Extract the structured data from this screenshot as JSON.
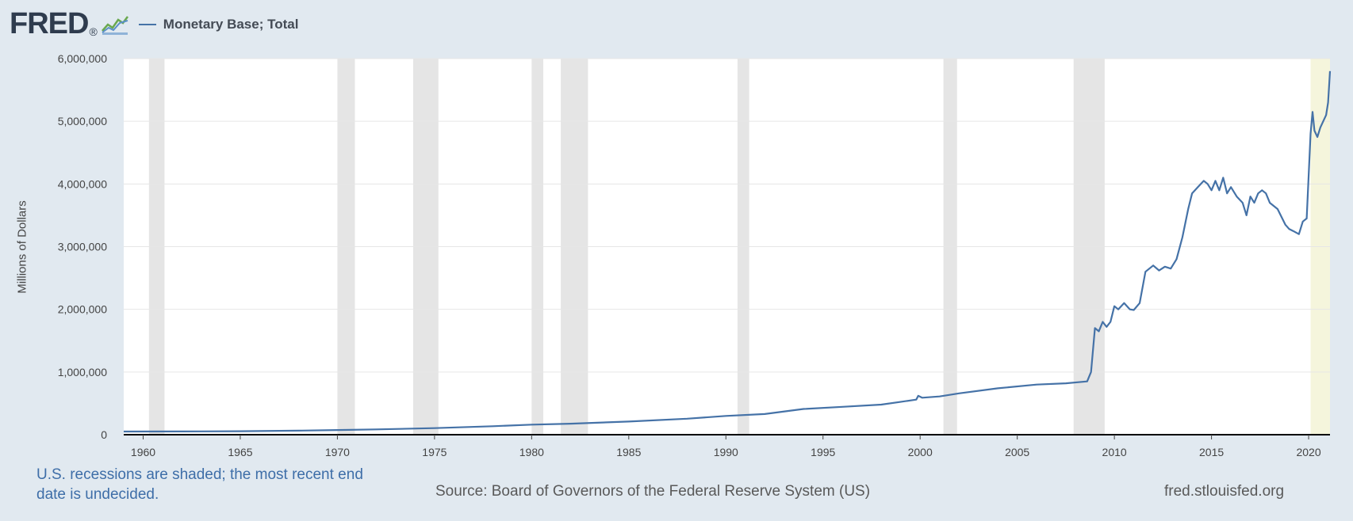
{
  "brand": {
    "logo_text": "FRED",
    "logo_mark": "®",
    "logo_icon": "chart-line-icon"
  },
  "colors": {
    "series": "#4572a7",
    "recession": "#e5e5e5",
    "undecided": "#f5f5dc",
    "background": "#e1e9f0",
    "plot_bg": "#ffffff"
  },
  "footnote": "U.S. recessions are shaded; the most recent end date is undecided.",
  "source": "Source: Board of Governors of the Federal Reserve System (US)",
  "site": "fred.stlouisfed.org",
  "chart_data": {
    "type": "line",
    "title": "",
    "ylabel": "Millions of Dollars",
    "xlabel": "",
    "xlim": [
      1959,
      2021.1
    ],
    "ylim": [
      0,
      6000000
    ],
    "x_ticks": [
      1960,
      1965,
      1970,
      1975,
      1980,
      1985,
      1990,
      1995,
      2000,
      2005,
      2010,
      2015,
      2020
    ],
    "x_tick_labels": [
      "1960",
      "1965",
      "1970",
      "1975",
      "1980",
      "1985",
      "1990",
      "1995",
      "2000",
      "2005",
      "2010",
      "2015",
      "2020"
    ],
    "y_ticks": [
      0,
      1000000,
      2000000,
      3000000,
      4000000,
      5000000,
      6000000
    ],
    "y_tick_labels": [
      "0",
      "1,000,000",
      "2,000,000",
      "3,000,000",
      "4,000,000",
      "5,000,000",
      "6,000,000"
    ],
    "grid": true,
    "legend_position": "top-left",
    "recessions": [
      [
        1960.3,
        1961.1
      ],
      [
        1970.0,
        1970.9
      ],
      [
        1973.9,
        1975.2
      ],
      [
        1980.0,
        1980.6
      ],
      [
        1981.5,
        1982.9
      ],
      [
        1990.6,
        1991.2
      ],
      [
        2001.2,
        2001.9
      ],
      [
        2007.9,
        2009.5
      ]
    ],
    "undecided_recession": [
      2020.1,
      2021.1
    ],
    "series": [
      {
        "name": "Monetary Base; Total",
        "x": [
          1959.0,
          1962.0,
          1965.0,
          1968.0,
          1970.0,
          1972.0,
          1975.0,
          1978.0,
          1980.0,
          1982.0,
          1985.0,
          1988.0,
          1990.0,
          1992.0,
          1994.0,
          1996.0,
          1998.0,
          1999.8,
          1999.9,
          2000.1,
          2001.0,
          2002.0,
          2004.0,
          2006.0,
          2007.5,
          2008.6,
          2008.8,
          2009.0,
          2009.2,
          2009.4,
          2009.6,
          2009.8,
          2010.0,
          2010.2,
          2010.5,
          2010.8,
          2011.0,
          2011.3,
          2011.6,
          2012.0,
          2012.3,
          2012.6,
          2012.9,
          2013.2,
          2013.5,
          2013.8,
          2014.0,
          2014.3,
          2014.6,
          2014.8,
          2015.0,
          2015.2,
          2015.4,
          2015.6,
          2015.8,
          2016.0,
          2016.3,
          2016.6,
          2016.8,
          2017.0,
          2017.2,
          2017.4,
          2017.6,
          2017.8,
          2018.0,
          2018.4,
          2018.8,
          2019.0,
          2019.2,
          2019.5,
          2019.7,
          2019.9,
          2020.1,
          2020.2,
          2020.3,
          2020.45,
          2020.6,
          2020.9,
          2021.0,
          2021.1
        ],
        "values": [
          50000,
          52000,
          55000,
          65000,
          75000,
          85000,
          105000,
          135000,
          160000,
          175000,
          210000,
          255000,
          300000,
          330000,
          410000,
          445000,
          480000,
          560000,
          620000,
          590000,
          610000,
          660000,
          740000,
          800000,
          820000,
          850000,
          1000000,
          1700000,
          1650000,
          1800000,
          1720000,
          1800000,
          2050000,
          2000000,
          2100000,
          2000000,
          1990000,
          2100000,
          2600000,
          2700000,
          2620000,
          2680000,
          2650000,
          2800000,
          3150000,
          3600000,
          3850000,
          3950000,
          4050000,
          4000000,
          3900000,
          4050000,
          3900000,
          4100000,
          3850000,
          3950000,
          3800000,
          3700000,
          3500000,
          3800000,
          3700000,
          3850000,
          3900000,
          3850000,
          3700000,
          3600000,
          3350000,
          3280000,
          3250000,
          3200000,
          3400000,
          3450000,
          4800000,
          5150000,
          4850000,
          4750000,
          4900000,
          5100000,
          5300000,
          5800000
        ]
      }
    ]
  }
}
